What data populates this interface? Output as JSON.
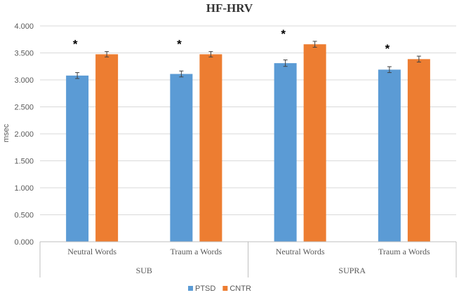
{
  "chart_data": {
    "type": "bar",
    "title": "HF-HRV",
    "ylabel": "msec",
    "ylim": [
      0,
      4000
    ],
    "y_ticks": [
      "0.000",
      "0.500",
      "1.000",
      "1.500",
      "2.000",
      "2.500",
      "3.000",
      "3.500",
      "4.000"
    ],
    "y_tick_values": [
      0,
      500,
      1000,
      1500,
      2000,
      2500,
      3000,
      3500,
      4000
    ],
    "groups": [
      {
        "label": "SUB",
        "categories": [
          "Neutral Words",
          "Traum a Words"
        ]
      },
      {
        "label": "SUPRA",
        "categories": [
          "Neutral Words",
          "Traum a Words"
        ]
      }
    ],
    "categories": [
      "Neutral Words",
      "Traum a Words",
      "Neutral Words",
      "Traum a Words"
    ],
    "series": [
      {
        "name": "PTSD",
        "color": "#5B9BD5",
        "values": [
          3080,
          3110,
          3310,
          3190
        ],
        "errors": [
          55,
          55,
          60,
          55
        ]
      },
      {
        "name": "CNTR",
        "color": "#ED7D31",
        "values": [
          3475,
          3475,
          3660,
          3385
        ],
        "errors": [
          50,
          50,
          55,
          55
        ]
      }
    ],
    "annotations": [
      "*",
      "*",
      "*",
      "*"
    ],
    "grid": true,
    "legend": "bottom"
  }
}
